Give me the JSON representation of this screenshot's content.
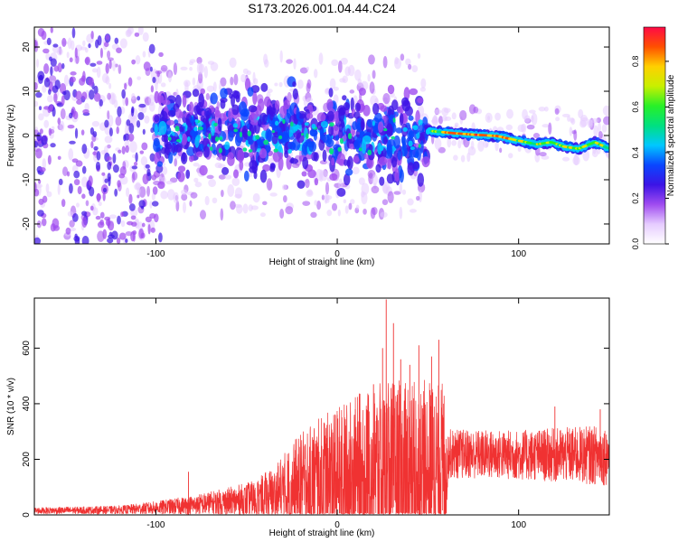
{
  "title": "S173.2026.001.04.44.C24",
  "chart_data": [
    {
      "type": "heatmap",
      "xlabel": "Height of straight line (km)",
      "ylabel": "Frequency (Hz)",
      "xlim": [
        -167,
        150
      ],
      "ylim": [
        -24.5,
        24.5
      ],
      "x_ticks": [
        -100,
        0,
        100
      ],
      "y_ticks": [
        -20,
        -10,
        0,
        10,
        20
      ],
      "colorbar": {
        "label": "Normalized spectral amplitude",
        "range": [
          0,
          0.95
        ],
        "ticks": [
          0.0,
          0.2,
          0.4,
          0.6,
          0.8
        ],
        "tick_labels": [
          "0.0",
          "0.2",
          "0.4",
          "0.6",
          "0.8"
        ],
        "colormap": [
          "#ffffff",
          "#e6ccff",
          "#a04cf0",
          "#3c14e6",
          "#0a46ff",
          "#00c8ff",
          "#00e080",
          "#28f028",
          "#c8f000",
          "#ffd000",
          "#ff5000",
          "#ff0a46"
        ]
      },
      "ridge": [
        {
          "x": 52,
          "y": 1.0
        },
        {
          "x": 65,
          "y": 0.5
        },
        {
          "x": 75,
          "y": 0.2
        },
        {
          "x": 88,
          "y": -0.1
        },
        {
          "x": 98,
          "y": -1.0
        },
        {
          "x": 110,
          "y": -2.0
        },
        {
          "x": 118,
          "y": -1.5
        },
        {
          "x": 125,
          "y": -2.5
        },
        {
          "x": 133,
          "y": -3.0
        },
        {
          "x": 142,
          "y": -1.5
        },
        {
          "x": 150,
          "y": -3.0
        }
      ],
      "grid": false
    },
    {
      "type": "line",
      "xlabel": "Height of straight line (km)",
      "ylabel": "SNR (10 * v/v)",
      "xlim": [
        -167,
        150
      ],
      "ylim": [
        0,
        780
      ],
      "x_ticks": [
        -100,
        0,
        100
      ],
      "y_ticks": [
        0,
        200,
        400,
        600
      ],
      "color": "#f03232",
      "envelope": [
        {
          "x": -167,
          "base": 15,
          "amp": 12
        },
        {
          "x": -120,
          "base": 18,
          "amp": 15
        },
        {
          "x": -100,
          "base": 25,
          "amp": 25
        },
        {
          "x": -80,
          "base": 35,
          "amp": 35
        },
        {
          "x": -60,
          "base": 45,
          "amp": 55
        },
        {
          "x": -45,
          "base": 55,
          "amp": 70
        },
        {
          "x": -35,
          "base": 70,
          "amp": 110
        },
        {
          "x": -25,
          "base": 90,
          "amp": 170
        },
        {
          "x": -15,
          "base": 110,
          "amp": 220
        },
        {
          "x": 0,
          "base": 130,
          "amp": 260
        },
        {
          "x": 20,
          "base": 140,
          "amp": 330
        },
        {
          "x": 40,
          "base": 150,
          "amp": 340
        },
        {
          "x": 60,
          "base": 160,
          "amp": 320
        },
        {
          "x": 61,
          "base": 220,
          "amp": 90
        },
        {
          "x": 100,
          "base": 215,
          "amp": 90
        },
        {
          "x": 150,
          "base": 215,
          "amp": 110
        }
      ],
      "spikes": [
        {
          "x": -82,
          "y": 155
        },
        {
          "x": 27,
          "y": 775
        },
        {
          "x": 25,
          "y": 600
        },
        {
          "x": 20,
          "y": 470
        },
        {
          "x": 31,
          "y": 690
        },
        {
          "x": 56,
          "y": 630
        },
        {
          "x": 52,
          "y": 570
        },
        {
          "x": 45,
          "y": 610
        },
        {
          "x": 40,
          "y": 540
        },
        {
          "x": 35,
          "y": 560
        },
        {
          "x": 10,
          "y": 380
        },
        {
          "x": 0,
          "y": 360
        },
        {
          "x": 120,
          "y": 390
        },
        {
          "x": 145,
          "y": 380
        }
      ],
      "grid": false
    }
  ]
}
